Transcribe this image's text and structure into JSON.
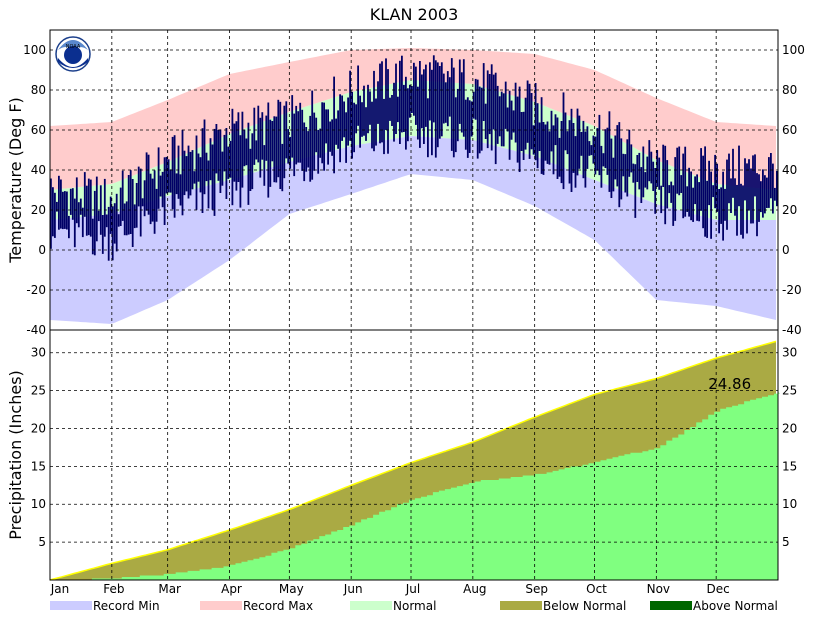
{
  "title": "KLAN 2003",
  "colors": {
    "record_min": "#ccccff",
    "record_max": "#ffcccc",
    "normal": "#ccffcc",
    "below_normal": "#aaaa44",
    "above_normal": "#006600",
    "actual_temp": "#000066",
    "precip_actual": "#80ff80",
    "normal_precip_line": "#ffff00",
    "grid": "#000000"
  },
  "chart_data": [
    {
      "type": "area",
      "panel": "temperature",
      "ylabel": "Temperature (Deg F)",
      "ylim": [
        -40,
        110
      ],
      "yticks": [
        -40,
        -20,
        0,
        20,
        40,
        60,
        80,
        100
      ],
      "grid": true,
      "months": [
        "Jan",
        "Feb",
        "Mar",
        "Apr",
        "May",
        "Jun",
        "Jul",
        "Aug",
        "Sep",
        "Oct",
        "Nov",
        "Dec"
      ],
      "month_start_day": [
        1,
        32,
        60,
        91,
        121,
        152,
        182,
        213,
        244,
        274,
        305,
        335
      ],
      "x_days": [
        1,
        32,
        60,
        91,
        121,
        152,
        182,
        213,
        244,
        274,
        305,
        335,
        365
      ],
      "record_max": [
        62,
        64,
        75,
        88,
        94,
        100,
        101,
        100,
        98,
        90,
        76,
        64,
        62
      ],
      "normal_high": [
        30,
        33,
        44,
        58,
        69,
        79,
        85,
        83,
        74,
        62,
        45,
        33,
        30
      ],
      "normal_low": [
        15,
        18,
        27,
        35,
        44,
        52,
        57,
        55,
        47,
        35,
        23,
        15,
        15
      ],
      "record_min": [
        -35,
        -37,
        -25,
        -5,
        18,
        28,
        38,
        35,
        22,
        5,
        -25,
        -28,
        -35
      ],
      "actual_high_monthly": [
        30,
        25,
        45,
        60,
        65,
        80,
        88,
        85,
        72,
        62,
        42,
        40,
        42
      ],
      "actual_low_monthly": [
        10,
        5,
        20,
        30,
        40,
        52,
        58,
        55,
        46,
        36,
        22,
        15,
        18
      ],
      "series": [
        {
          "name": "Record Min"
        },
        {
          "name": "Record Max"
        },
        {
          "name": "Normal"
        }
      ]
    },
    {
      "type": "area",
      "panel": "precipitation",
      "ylabel": "Precipitation (Inches)",
      "ylim": [
        0,
        33
      ],
      "yticks": [
        5,
        10,
        15,
        20,
        25,
        30
      ],
      "grid": true,
      "x_days": [
        1,
        32,
        60,
        91,
        121,
        152,
        182,
        213,
        244,
        274,
        305,
        335,
        365
      ],
      "normal_cumulative": [
        0,
        2.2,
        4.0,
        6.6,
        9.3,
        12.5,
        15.5,
        18.2,
        21.5,
        24.5,
        26.6,
        29.3,
        31.5
      ],
      "actual_cumulative": [
        0,
        0.3,
        0.9,
        2.0,
        4.3,
        7.5,
        10.8,
        13.1,
        14.0,
        15.7,
        17.6,
        22.5,
        24.86
      ],
      "annotation": "24.86",
      "series": [
        {
          "name": "Below Normal"
        },
        {
          "name": "Above Normal"
        }
      ]
    }
  ],
  "legend": [
    {
      "label": "Record Min",
      "color": "#ccccff"
    },
    {
      "label": "Record Max",
      "color": "#ffcccc"
    },
    {
      "label": "Normal",
      "color": "#ccffcc"
    },
    {
      "label": "Below Normal",
      "color": "#aaaa44"
    },
    {
      "label": "Above Normal",
      "color": "#006600"
    }
  ],
  "logo": {
    "name": "noaa-logo",
    "text": "NOAA"
  }
}
